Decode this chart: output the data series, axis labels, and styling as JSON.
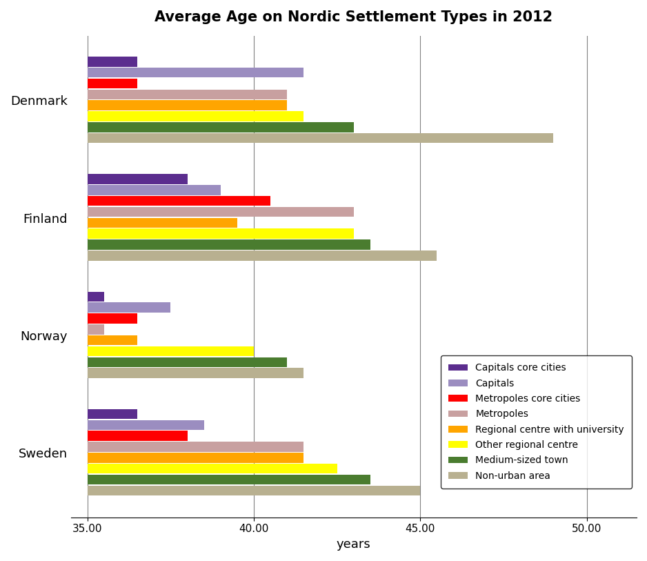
{
  "title": "Average Age on Nordic Settlement Types in 2012",
  "xlabel": "years",
  "countries": [
    "Denmark",
    "Finland",
    "Norway",
    "Sweden"
  ],
  "categories": [
    "Capitals core cities",
    "Capitals",
    "Metropoles core cities",
    "Metropoles",
    "Regional centre with university",
    "Other regional centre",
    "Medium-sized town",
    "Non-urban area"
  ],
  "colors": [
    "#5b2d8e",
    "#9b8dc0",
    "#ff0000",
    "#c8a0a0",
    "#ffa500",
    "#ffff00",
    "#4a7c2f",
    "#b8b090"
  ],
  "data": {
    "Denmark": [
      36.5,
      41.5,
      36.5,
      41.0,
      41.0,
      41.5,
      43.0,
      49.0
    ],
    "Finland": [
      38.0,
      39.0,
      40.5,
      43.0,
      39.5,
      43.0,
      43.5,
      45.5
    ],
    "Norway": [
      35.5,
      37.5,
      36.5,
      35.5,
      36.5,
      40.0,
      41.0,
      41.5
    ],
    "Sweden": [
      36.5,
      38.5,
      38.0,
      41.5,
      41.5,
      42.5,
      43.5,
      45.0
    ]
  },
  "xlim": [
    34.5,
    51.5
  ],
  "xticks": [
    35.0,
    40.0,
    45.0,
    50.0
  ],
  "xtick_labels": [
    "35.00",
    "40.00",
    "45.00",
    "50.00"
  ],
  "background_color": "#ffffff",
  "grid_color": "#808080"
}
